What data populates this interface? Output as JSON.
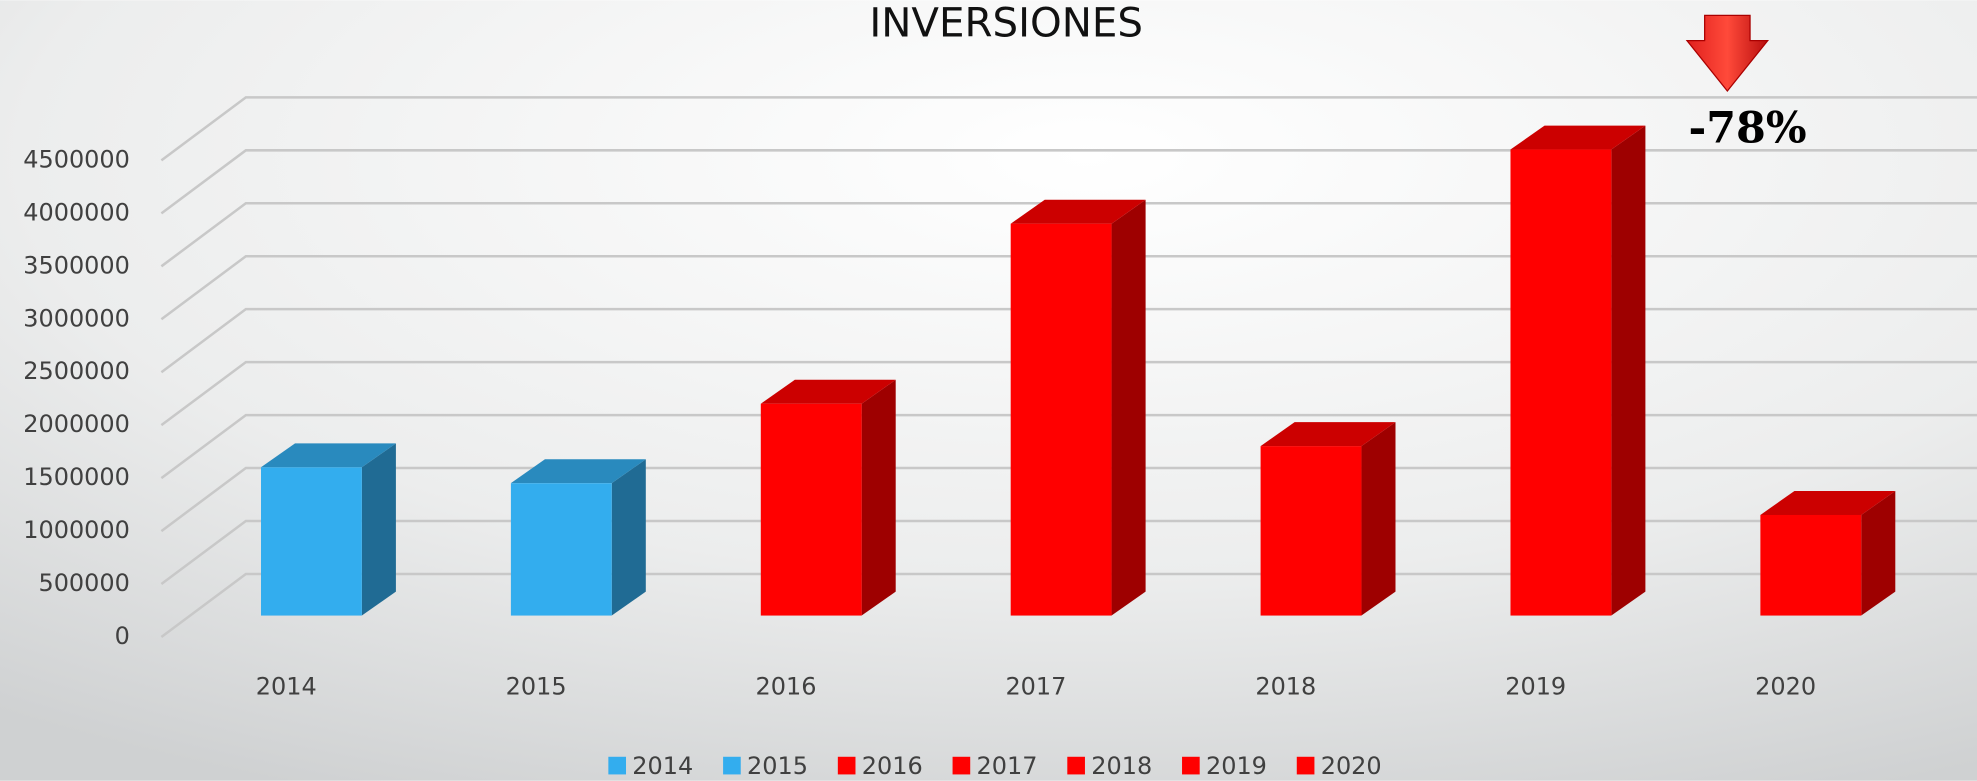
{
  "chart_data": {
    "type": "bar3d",
    "title": "INVERSIONES",
    "categories": [
      "2014",
      "2015",
      "2016",
      "2017",
      "2018",
      "2019",
      "2020"
    ],
    "series": [
      {
        "name": "2014",
        "color": "#33adee",
        "values": [
          1400000,
          null,
          null,
          null,
          null,
          null,
          null
        ]
      },
      {
        "name": "2015",
        "color": "#33adee",
        "values": [
          null,
          1250000,
          null,
          null,
          null,
          null,
          null
        ]
      },
      {
        "name": "2016",
        "color": "#ff0000",
        "values": [
          null,
          null,
          2000000,
          null,
          null,
          null,
          null
        ]
      },
      {
        "name": "2017",
        "color": "#ff0000",
        "values": [
          null,
          null,
          null,
          3700000,
          null,
          null,
          null
        ]
      },
      {
        "name": "2018",
        "color": "#ff0000",
        "values": [
          null,
          null,
          null,
          null,
          1600000,
          null,
          null
        ]
      },
      {
        "name": "2019",
        "color": "#ff0000",
        "values": [
          null,
          null,
          null,
          null,
          null,
          4400000,
          null
        ]
      },
      {
        "name": "2020",
        "color": "#ff0000",
        "values": [
          null,
          null,
          null,
          null,
          null,
          null,
          950000
        ]
      }
    ],
    "ylim": [
      0,
      4500000
    ],
    "yticks": [
      0,
      500000,
      1000000,
      1500000,
      2000000,
      2500000,
      3000000,
      3500000,
      4000000,
      4500000
    ],
    "grid": true,
    "legend": "bottom",
    "annotation": "-78%"
  }
}
